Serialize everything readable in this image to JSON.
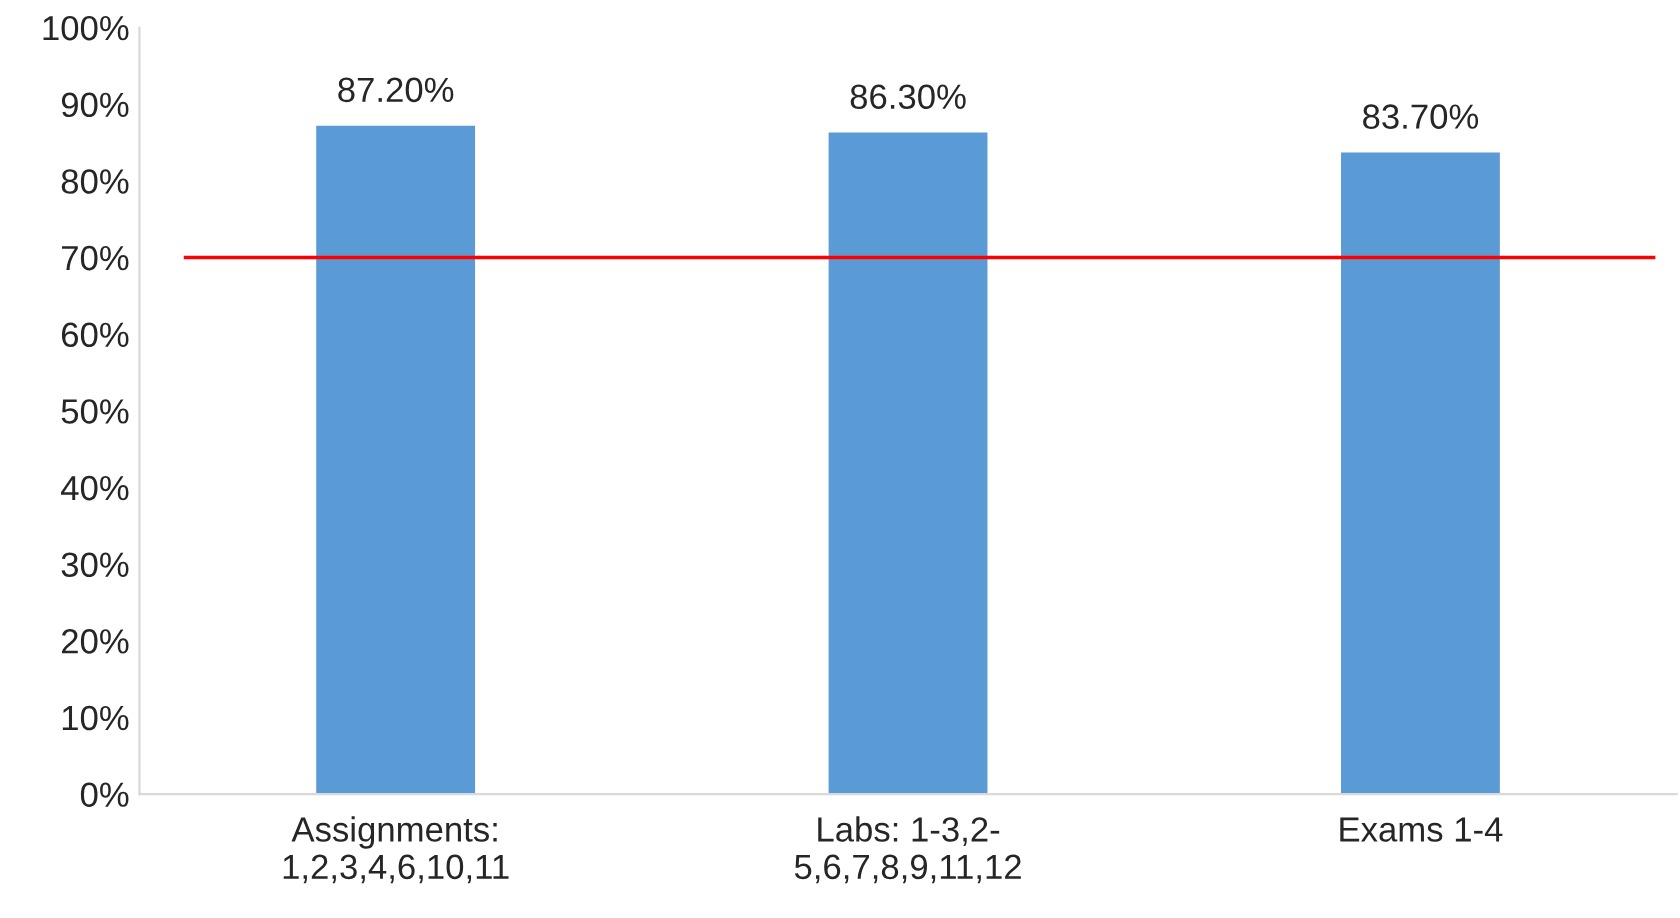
{
  "chart_data": {
    "type": "bar",
    "categories": [
      "Assignments:\n1,2,3,4,6,10,11",
      "Labs: 1-3,2-\n5,6,7,8,9,11,12",
      "Exams 1-4"
    ],
    "values": [
      87.2,
      86.3,
      83.7
    ],
    "color": "#5b9bd5",
    "value_labels": [
      "87.20%",
      "86.30%",
      "83.70%"
    ],
    "ylim": [
      0,
      100
    ],
    "yticks": [
      {
        "value": 0,
        "label": "0%"
      },
      {
        "value": 10,
        "label": "10%"
      },
      {
        "value": 20,
        "label": "20%"
      },
      {
        "value": 30,
        "label": "30%"
      },
      {
        "value": 40,
        "label": "40%"
      },
      {
        "value": 50,
        "label": "50%"
      },
      {
        "value": 60,
        "label": "60%"
      },
      {
        "value": 70,
        "label": "70%"
      },
      {
        "value": 80,
        "label": "80%"
      },
      {
        "value": 90,
        "label": "90%"
      },
      {
        "value": 100,
        "label": "100%"
      }
    ],
    "ref_lines": [
      {
        "axis": "y",
        "value": 70,
        "color": "#ff0000"
      }
    ],
    "grid": false,
    "legend": false
  }
}
